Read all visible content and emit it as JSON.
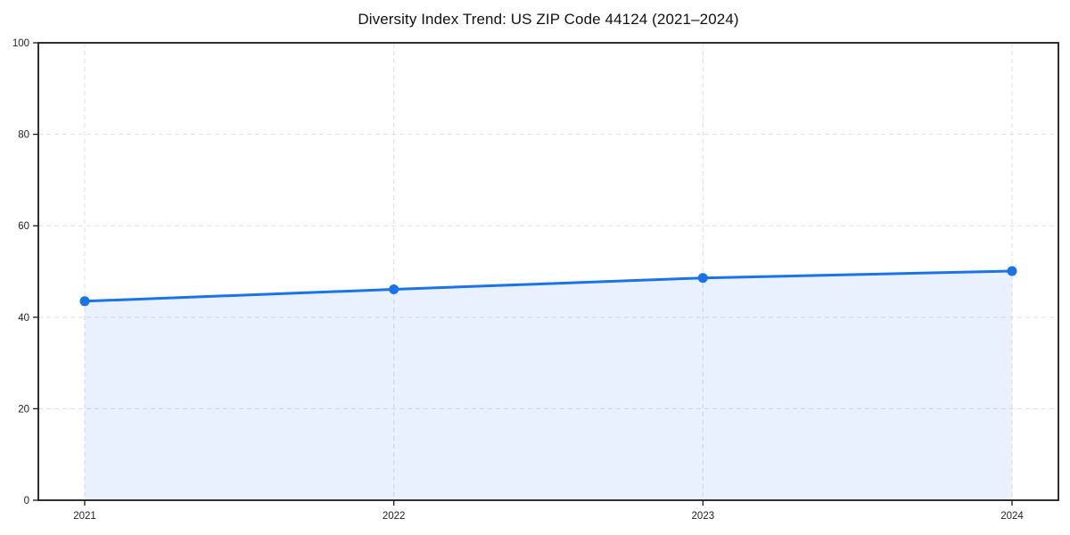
{
  "chart_data": {
    "type": "area",
    "title": "Diversity Index Trend: US ZIP Code 44124 (2021–2024)",
    "categories": [
      "2021",
      "2022",
      "2023",
      "2024"
    ],
    "x": [
      2021,
      2022,
      2023,
      2024
    ],
    "series": [
      {
        "name": "Diversity Index",
        "values": [
          43.5,
          46.1,
          48.6,
          50.1
        ]
      }
    ],
    "xlabel": "",
    "ylabel": "",
    "xlim": [
      2020.85,
      2024.15
    ],
    "ylim": [
      0,
      100
    ],
    "yticks": [
      0,
      20,
      40,
      60,
      80,
      100
    ],
    "xticks": [
      2021,
      2022,
      2023,
      2024
    ],
    "grid": "dashed",
    "legend": "none",
    "colors": {
      "line": "#1a73e8",
      "marker": "#1a73e8",
      "fill": "#1a73e8",
      "fill_opacity": 0.1,
      "grid": "#e2e2e2",
      "frame": "#1a1a1a",
      "tick_text": "#1f1f1f",
      "title_text": "#111111",
      "background": "#ffffff"
    }
  }
}
